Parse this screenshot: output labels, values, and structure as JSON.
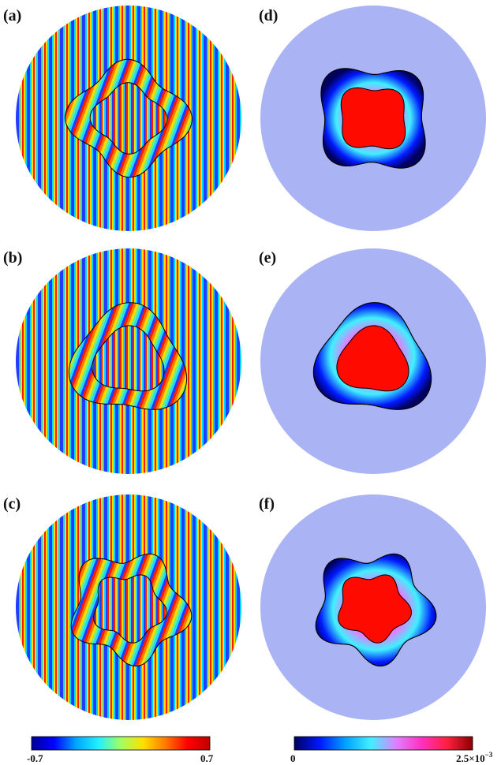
{
  "panels": [
    {
      "id": "a",
      "label": "(a)",
      "kind": "field",
      "shape_lobes": 4,
      "shape_rotation_deg": 0
    },
    {
      "id": "b",
      "label": "(b)",
      "kind": "field",
      "shape_lobes": 3,
      "shape_rotation_deg": 35
    },
    {
      "id": "c",
      "label": "(c)",
      "kind": "field",
      "shape_lobes": 5,
      "shape_rotation_deg": 10
    },
    {
      "id": "d",
      "label": "(d)",
      "kind": "intensity",
      "shape_lobes": 4,
      "shape_rotation_deg": 45
    },
    {
      "id": "e",
      "label": "(e)",
      "kind": "intensity",
      "shape_lobes": 3,
      "shape_rotation_deg": 35
    },
    {
      "id": "f",
      "label": "(f)",
      "kind": "intensity",
      "shape_lobes": 5,
      "shape_rotation_deg": 10
    }
  ],
  "colorbars": [
    {
      "id": "field",
      "min_label": "-0.7",
      "max_label": "0.7",
      "colors": [
        "#00009a",
        "#0000ff",
        "#00a6ff",
        "#22f0ff",
        "#a0ff60",
        "#ffe000",
        "#ff7a00",
        "#ff0000",
        "#c00000"
      ]
    },
    {
      "id": "intensity",
      "min_label": "0",
      "max_label": "2.5×10",
      "max_exponent": "−3",
      "colors": [
        "#000060",
        "#0018ff",
        "#00a0ff",
        "#40f0ff",
        "#e080ff",
        "#ff30c0",
        "#ff2040",
        "#8a0000"
      ]
    }
  ],
  "colors": {
    "stripe_red": "#ff1a00",
    "stripe_yellow": "#ffdd00",
    "stripe_cyan": "#00d8ff",
    "stripe_blue": "#1f3cff",
    "background_disk": "#aab4f5",
    "core_red": "#ff0a00",
    "outline": "#000000"
  }
}
